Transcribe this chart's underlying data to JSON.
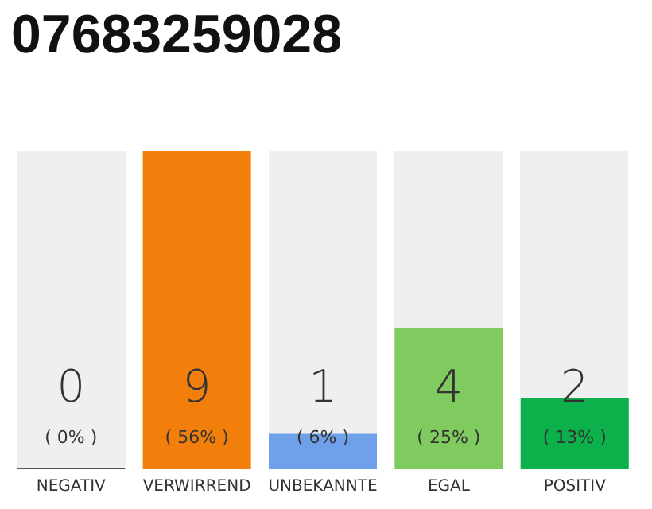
{
  "chart_data": {
    "type": "bar",
    "title": "07683259028",
    "categories": [
      "NEGATIV",
      "VERWIRREND",
      "UNBEKANNTE",
      "EGAL",
      "POSITIV"
    ],
    "values": [
      0,
      9,
      1,
      4,
      2
    ],
    "colors": [
      "#555555",
      "#f27f0c",
      "#6fa1ea",
      "#7fcb5f",
      "#0db14b"
    ],
    "data_labels": true,
    "annotations": [
      "( 0% )",
      "( 56% )",
      "( 6% )",
      "( 25% )",
      "( 13% )"
    ],
    "grid": false
  }
}
